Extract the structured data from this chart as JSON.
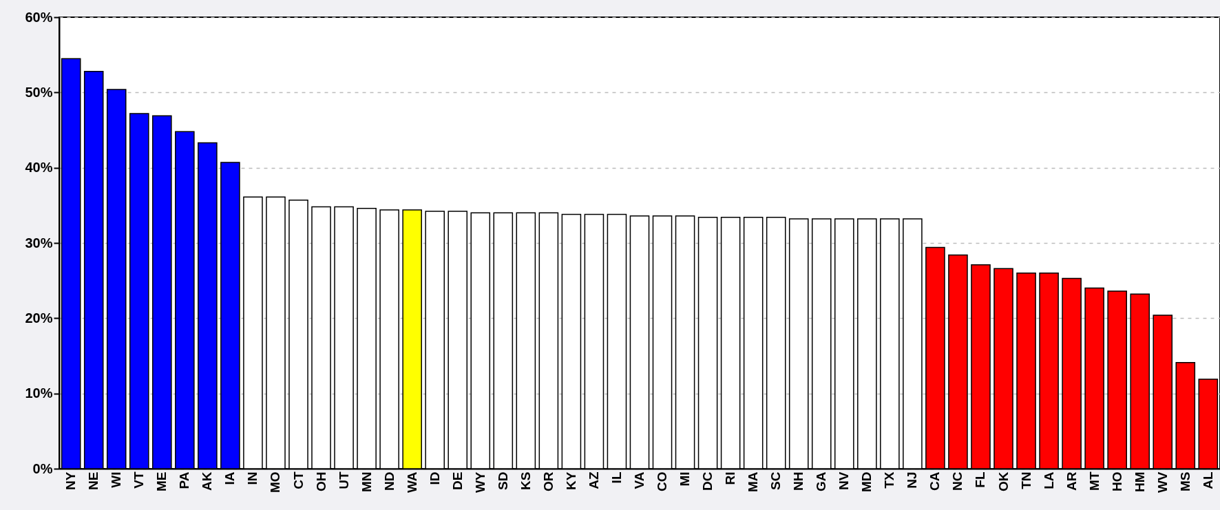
{
  "chart_data": {
    "type": "bar",
    "categories": [
      "NY",
      "NE",
      "WI",
      "VT",
      "ME",
      "PA",
      "AK",
      "IA",
      "IN",
      "MO",
      "CT",
      "OH",
      "UT",
      "MN",
      "ND",
      "WA",
      "ID",
      "DE",
      "WY",
      "SD",
      "KS",
      "OR",
      "KY",
      "AZ",
      "IL",
      "VA",
      "CO",
      "MI",
      "DC",
      "RI",
      "MA",
      "SC",
      "NH",
      "GA",
      "NV",
      "MD",
      "TX",
      "NJ",
      "CA",
      "NC",
      "FL",
      "OK",
      "TN",
      "LA",
      "AR",
      "MT",
      "HO",
      "HM",
      "WV",
      "MS",
      "AL"
    ],
    "values": [
      54.5,
      52.8,
      50.4,
      47.2,
      46.9,
      44.8,
      43.3,
      40.7,
      36.1,
      36.1,
      35.7,
      34.8,
      34.8,
      34.6,
      34.4,
      34.4,
      34.2,
      34.2,
      34.0,
      34.0,
      34.0,
      34.0,
      33.8,
      33.8,
      33.8,
      33.6,
      33.6,
      33.6,
      33.4,
      33.4,
      33.4,
      33.4,
      33.2,
      33.2,
      33.2,
      33.2,
      33.2,
      33.2,
      29.4,
      28.4,
      27.1,
      26.6,
      26.0,
      26.0,
      25.3,
      24.0,
      23.6,
      23.2,
      20.4,
      14.1,
      11.9
    ],
    "colors": [
      "#0000ff",
      "#0000ff",
      "#0000ff",
      "#0000ff",
      "#0000ff",
      "#0000ff",
      "#0000ff",
      "#0000ff",
      "#ffffff",
      "#ffffff",
      "#ffffff",
      "#ffffff",
      "#ffffff",
      "#ffffff",
      "#ffffff",
      "#ffff00",
      "#ffffff",
      "#ffffff",
      "#ffffff",
      "#ffffff",
      "#ffffff",
      "#ffffff",
      "#ffffff",
      "#ffffff",
      "#ffffff",
      "#ffffff",
      "#ffffff",
      "#ffffff",
      "#ffffff",
      "#ffffff",
      "#ffffff",
      "#ffffff",
      "#ffffff",
      "#ffffff",
      "#ffffff",
      "#ffffff",
      "#ffffff",
      "#ffffff",
      "#ff0000",
      "#ff0000",
      "#ff0000",
      "#ff0000",
      "#ff0000",
      "#ff0000",
      "#ff0000",
      "#ff0000",
      "#ff0000",
      "#ff0000",
      "#ff0000",
      "#ff0000",
      "#ff0000"
    ],
    "ylim": [
      0,
      60
    ],
    "yticks": [
      {
        "value": 0,
        "label": "0%"
      },
      {
        "value": 10,
        "label": "10%"
      },
      {
        "value": 20,
        "label": "20%"
      },
      {
        "value": 30,
        "label": "30%"
      },
      {
        "value": 40,
        "label": "40%"
      },
      {
        "value": 50,
        "label": "50%"
      },
      {
        "value": 60,
        "label": "60%"
      }
    ],
    "grid": "y"
  }
}
